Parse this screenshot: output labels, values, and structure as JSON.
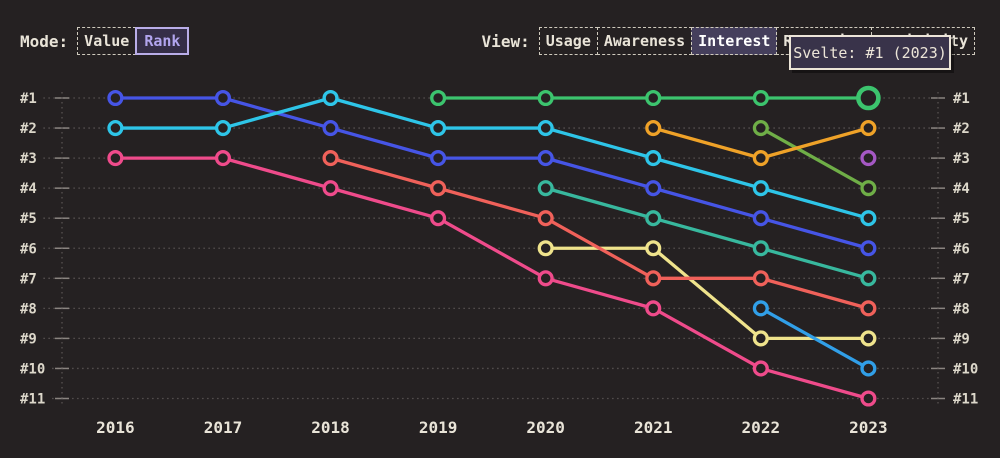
{
  "palette": {
    "background": "#252122",
    "text": "#e9e4d8",
    "muted_text": "#dcd7ca",
    "grid": "#575252",
    "tick": "#8a8480",
    "tooltip_bg": "#39334a",
    "tooltip_border": "#ece5d8",
    "selected_view_bg": "#453f5c",
    "selected_rank_bg": "#352e47",
    "selected_rank_text": "#b2a5ee",
    "selected_rank_border": "#b9ade8"
  },
  "header": {
    "mode": {
      "label": "Mode:",
      "options": [
        {
          "label": "Value",
          "selected": false
        },
        {
          "label": "Rank",
          "selected": true
        }
      ]
    },
    "view": {
      "label": "View:",
      "options": [
        {
          "label": "Usage",
          "selected": false
        },
        {
          "label": "Awareness",
          "selected": false
        },
        {
          "label": "Interest",
          "selected": true
        },
        {
          "label": "Retention",
          "selected": false
        },
        {
          "label": "Positivity",
          "selected": false
        }
      ]
    }
  },
  "tooltip": {
    "text": "Svelte: #1 (2023)"
  },
  "chart_data": {
    "type": "line",
    "subtype": "bump-rank",
    "x": [
      2016,
      2017,
      2018,
      2019,
      2020,
      2021,
      2022,
      2023
    ],
    "rank_labels": [
      "#1",
      "#2",
      "#3",
      "#4",
      "#5",
      "#6",
      "#7",
      "#8",
      "#9",
      "#10",
      "#11"
    ],
    "rank_axis": {
      "min": 1,
      "max": 11,
      "left_and_right": true
    },
    "grid": "dotted-horizontal",
    "highlight": {
      "series": "svelte-green",
      "year": 2023,
      "label": "Svelte: #1 (2023)"
    },
    "series": [
      {
        "id": "royal-blue",
        "name": null,
        "color": "#4655e6",
        "values": [
          1,
          1,
          2,
          3,
          3,
          4,
          5,
          6
        ]
      },
      {
        "id": "cyan",
        "name": null,
        "color": "#2ec5e8",
        "values": [
          2,
          2,
          1,
          2,
          2,
          3,
          4,
          5
        ]
      },
      {
        "id": "pink",
        "name": null,
        "color": "#ef4b8b",
        "values": [
          3,
          3,
          4,
          5,
          7,
          8,
          10,
          11
        ]
      },
      {
        "id": "yellow",
        "name": null,
        "color": "#efe38c",
        "values": [
          null,
          null,
          null,
          null,
          6,
          6,
          9,
          9
        ]
      },
      {
        "id": "teal",
        "name": null,
        "color": "#38b89e",
        "values": [
          null,
          null,
          null,
          null,
          4,
          5,
          6,
          7
        ]
      },
      {
        "id": "salmon",
        "name": null,
        "color": "#f0615a",
        "values": [
          null,
          null,
          3,
          4,
          5,
          7,
          7,
          8
        ]
      },
      {
        "id": "olive-green",
        "name": null,
        "color": "#6fae47",
        "values": [
          null,
          null,
          null,
          null,
          null,
          null,
          2,
          4
        ]
      },
      {
        "id": "dodger-blue",
        "name": null,
        "color": "#319fe8",
        "values": [
          null,
          null,
          null,
          null,
          null,
          null,
          8,
          10
        ]
      },
      {
        "id": "purple",
        "name": null,
        "color": "#a558c4",
        "values": [
          null,
          null,
          null,
          null,
          null,
          null,
          null,
          3
        ]
      },
      {
        "id": "amber",
        "name": null,
        "color": "#efa228",
        "values": [
          null,
          null,
          null,
          null,
          null,
          2,
          3,
          2
        ]
      },
      {
        "id": "svelte-green",
        "name": "Svelte",
        "color": "#3cc46e",
        "values": [
          null,
          null,
          null,
          1,
          1,
          1,
          1,
          1
        ]
      }
    ]
  }
}
